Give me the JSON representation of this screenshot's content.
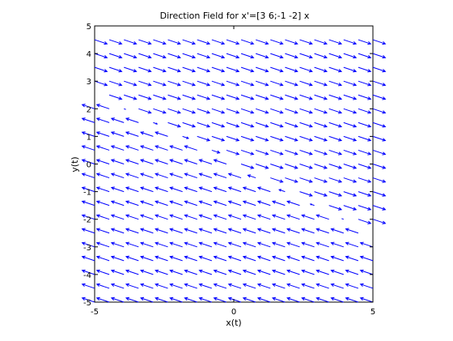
{
  "chart_data": {
    "type": "quiver",
    "title": "Direction Field for x'=[3 6;-1 -2] x",
    "xlabel": "x(t)",
    "ylabel": "y(t)",
    "xlim": [
      -5,
      5
    ],
    "ylim": [
      -5,
      5
    ],
    "xticks": [
      -5,
      0,
      5
    ],
    "yticks": [
      -5,
      -4,
      -3,
      -2,
      -1,
      0,
      1,
      2,
      3,
      4,
      5
    ],
    "xtick_labels": [
      "-5",
      "0",
      "5"
    ],
    "ytick_labels": [
      "-5",
      "-4",
      "-3",
      "-2",
      "-1",
      "0",
      "1",
      "2",
      "3",
      "4",
      "5"
    ],
    "system_matrix": [
      [
        3,
        6
      ],
      [
        -1,
        -2
      ]
    ],
    "grid_x": [
      -5,
      5,
      20
    ],
    "grid_y": [
      -5,
      4.5,
      20
    ],
    "normalized_arrows": true,
    "arrow_color": "#0000ff",
    "grid": false
  }
}
